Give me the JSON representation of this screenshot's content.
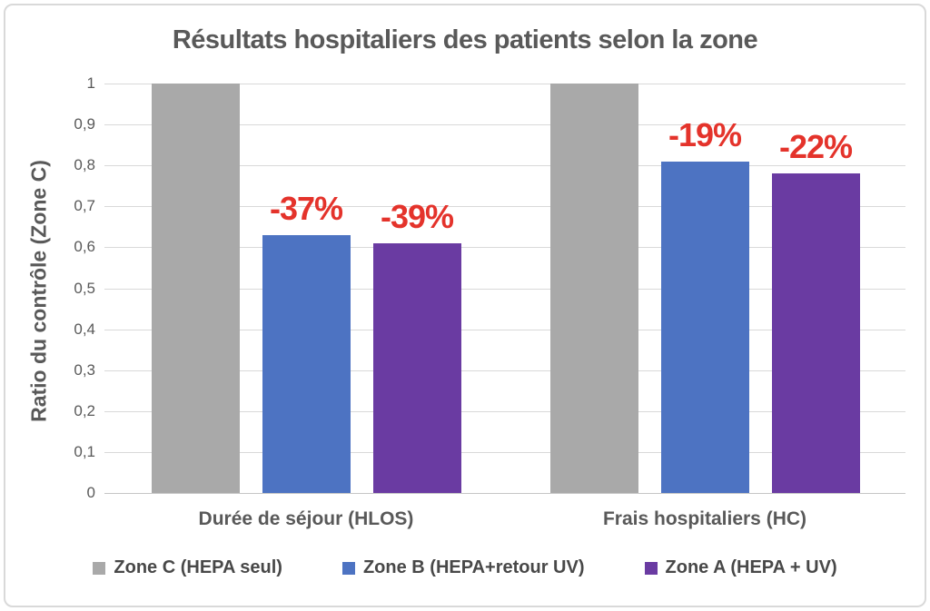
{
  "title": "Résultats hospitaliers des patients selon la zone",
  "chart_data": {
    "type": "bar",
    "title": "Résultats hospitaliers des patients selon la zone",
    "ylabel": "Ratio du contrôle (Zone C)",
    "xlabel": "",
    "ylim": [
      0,
      1
    ],
    "ytick_values": [
      0,
      0.1,
      0.2,
      0.3,
      0.4,
      0.5,
      0.6,
      0.7,
      0.8,
      0.9,
      1
    ],
    "ytick_labels": [
      "0",
      "0,1",
      "0,2",
      "0,3",
      "0,4",
      "0,5",
      "0,6",
      "0,7",
      "0,8",
      "0,9",
      "1"
    ],
    "categories": [
      "Durée de séjour (HLOS)",
      "Frais hospitaliers (HC)"
    ],
    "series": [
      {
        "name": "Zone C (HEPA seul)",
        "color": "#a9a9a9",
        "values": [
          1.0,
          1.0
        ],
        "annotations": [
          "",
          ""
        ]
      },
      {
        "name": "Zone B (HEPA+retour UV)",
        "color": "#4d73c2",
        "values": [
          0.63,
          0.81
        ],
        "annotations": [
          "-37%",
          "-19%"
        ]
      },
      {
        "name": "Zone A (HEPA + UV)",
        "color": "#6a3ba2",
        "values": [
          0.61,
          0.78
        ],
        "annotations": [
          "-39%",
          "-22%"
        ]
      }
    ],
    "annotation_color": "#e4332b",
    "gridline_color": "#d9d9d9",
    "grid": true,
    "legend_position": "bottom"
  }
}
